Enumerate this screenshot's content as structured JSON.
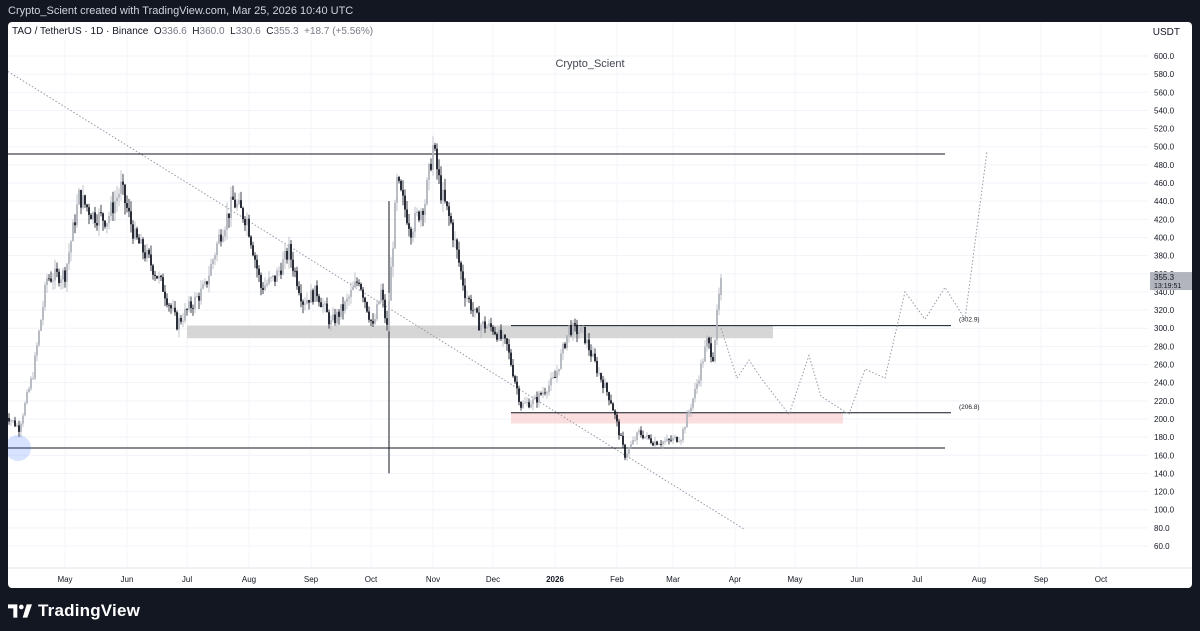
{
  "header": {
    "credit": "Crypto_Scient created with TradingView.com, Mar 25, 2026 10:40 UTC"
  },
  "symbol": {
    "name": "TAO / TetherUS · 1D · Binance",
    "open_label": "O",
    "open": "336.6",
    "high_label": "H",
    "high": "360.0",
    "low_label": "L",
    "low": "330.6",
    "close_label": "C",
    "close": "355.3",
    "change": "+18.7 (+5.56%)"
  },
  "currency": "USDT",
  "watermark": "Crypto_Scient",
  "footer": {
    "brand": "TradingView",
    "logo_icon": "tradingview-logo-icon"
  },
  "colors": {
    "background": "#131722",
    "chart_bg": "#ffffff",
    "candle_up": "#b2b5be",
    "candle_down": "#131722",
    "zone_gray": "#c8c8c8",
    "zone_pink": "#f7c5c5",
    "price_tag": "#b2b5be"
  },
  "chart_data": {
    "type": "candlestick",
    "y_axis": {
      "ticks": [
        "60.0",
        "80.0",
        "100.0",
        "120.0",
        "140.0",
        "160.0",
        "180.0",
        "200.0",
        "220.0",
        "240.0",
        "260.0",
        "280.0",
        "300.0",
        "320.0",
        "340.0",
        "360.0",
        "380.0",
        "400.0",
        "420.0",
        "440.0",
        "460.0",
        "480.0",
        "500.0",
        "520.0",
        "540.0",
        "560.0",
        "580.0",
        "600.0"
      ],
      "ylim": [
        55,
        612
      ]
    },
    "x_axis": {
      "ticks": [
        "May",
        "Jun",
        "Jul",
        "Aug",
        "Sep",
        "Oct",
        "Nov",
        "Dec",
        "2026",
        "Feb",
        "Mar",
        "Apr",
        "May",
        "Jun",
        "Jul",
        "Aug",
        "Sep",
        "Oct"
      ],
      "dates": [
        "2025-05-01",
        "2025-06-01",
        "2025-07-01",
        "2025-08-01",
        "2025-09-01",
        "2025-10-01",
        "2025-11-01",
        "2025-12-01",
        "2026-01-01",
        "2026-02-01",
        "2026-03-01",
        "2026-04-01",
        "2026-05-01",
        "2026-06-01",
        "2026-07-01",
        "2026-08-01",
        "2026-09-01",
        "2026-10-01"
      ]
    },
    "close_series": [
      [
        "2025-04-01",
        206
      ],
      [
        "2025-04-08",
        190
      ],
      [
        "2025-04-15",
        250
      ],
      [
        "2025-04-22",
        355
      ],
      [
        "2025-05-01",
        360
      ],
      [
        "2025-05-08",
        445
      ],
      [
        "2025-05-15",
        425
      ],
      [
        "2025-05-22",
        420
      ],
      [
        "2025-05-29",
        455
      ],
      [
        "2025-06-05",
        400
      ],
      [
        "2025-06-12",
        375
      ],
      [
        "2025-06-19",
        345
      ],
      [
        "2025-06-26",
        305
      ],
      [
        "2025-07-03",
        325
      ],
      [
        "2025-07-10",
        345
      ],
      [
        "2025-07-17",
        400
      ],
      [
        "2025-07-24",
        440
      ],
      [
        "2025-07-31",
        420
      ],
      [
        "2025-08-07",
        345
      ],
      [
        "2025-08-14",
        355
      ],
      [
        "2025-08-21",
        385
      ],
      [
        "2025-08-28",
        330
      ],
      [
        "2025-09-04",
        340
      ],
      [
        "2025-09-11",
        305
      ],
      [
        "2025-09-18",
        325
      ],
      [
        "2025-09-25",
        355
      ],
      [
        "2025-10-02",
        300
      ],
      [
        "2025-10-06",
        340
      ],
      [
        "2025-10-09",
        300
      ],
      [
        "2025-10-14",
        460
      ],
      [
        "2025-10-21",
        410
      ],
      [
        "2025-10-28",
        440
      ],
      [
        "2025-11-01",
        500
      ],
      [
        "2025-11-05",
        450
      ],
      [
        "2025-11-10",
        415
      ],
      [
        "2025-11-17",
        340
      ],
      [
        "2025-11-24",
        305
      ],
      [
        "2025-12-01",
        300
      ],
      [
        "2025-12-08",
        280
      ],
      [
        "2025-12-15",
        215
      ],
      [
        "2025-12-22",
        220
      ],
      [
        "2026-01-01",
        245
      ],
      [
        "2026-01-08",
        300
      ],
      [
        "2026-01-15",
        295
      ],
      [
        "2026-01-22",
        255
      ],
      [
        "2026-01-29",
        220
      ],
      [
        "2026-02-05",
        160
      ],
      [
        "2026-02-12",
        185
      ],
      [
        "2026-02-19",
        175
      ],
      [
        "2026-02-26",
        175
      ],
      [
        "2026-03-05",
        180
      ],
      [
        "2026-03-12",
        230
      ],
      [
        "2026-03-18",
        285
      ],
      [
        "2026-03-21",
        270
      ],
      [
        "2026-03-25",
        355.3
      ]
    ],
    "annotations": {
      "horizontal_lines": [
        {
          "price": 492
        },
        {
          "price": 168
        },
        {
          "price": 302.9,
          "label": "(302.9)"
        },
        {
          "price": 206.8,
          "label": "(206.8)"
        }
      ],
      "zones": [
        {
          "from": "2025-07-01",
          "to": "2026-04-20",
          "price_low": 289,
          "price_high": 303,
          "color": "gray"
        },
        {
          "from": "2025-12-10",
          "to": "2026-05-25",
          "price_low": 195,
          "price_high": 207,
          "color": "pink"
        }
      ],
      "vertical_line": {
        "date": "2025-10-10",
        "price_low": 140,
        "price_high": 440
      },
      "trendline_dotted": {
        "from": [
          "2025-04-01",
          585
        ],
        "to": [
          "2026-04-06",
          78
        ]
      },
      "projection_dotted": [
        [
          "2026-03-25",
          300
        ],
        [
          "2026-04-02",
          245
        ],
        [
          "2026-04-08",
          265
        ],
        [
          "2026-04-14",
          245
        ],
        [
          "2026-04-28",
          205
        ],
        [
          "2026-05-08",
          270
        ],
        [
          "2026-05-14",
          225
        ],
        [
          "2026-05-28",
          205
        ],
        [
          "2026-06-05",
          255
        ],
        [
          "2026-06-15",
          245
        ],
        [
          "2026-06-25",
          340
        ],
        [
          "2026-07-05",
          310
        ],
        [
          "2026-07-15",
          345
        ],
        [
          "2026-07-25",
          310
        ],
        [
          "2026-08-05",
          495
        ]
      ],
      "last_price": {
        "value": "355.3",
        "countdown": "13:19:51"
      }
    }
  }
}
